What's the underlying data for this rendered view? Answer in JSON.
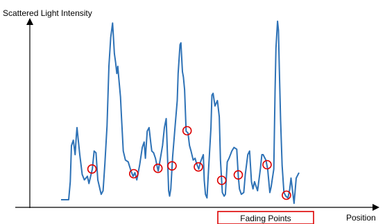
{
  "chart_data": {
    "type": "line",
    "title": "",
    "ylabel": "Scattered Light Intensity",
    "xlabel": "Position",
    "annotation": "Fading Points",
    "xlim": [
      0,
      100
    ],
    "ylim": [
      0,
      100
    ],
    "grid": false,
    "tick_labels": "none",
    "series": [
      {
        "values": [
          [
            0,
            0
          ],
          [
            2.5,
            0
          ],
          [
            3,
            10
          ],
          [
            3.4,
            30
          ],
          [
            4,
            33
          ],
          [
            4.6,
            25
          ],
          [
            5,
            36
          ],
          [
            5.2,
            40
          ],
          [
            6.1,
            25
          ],
          [
            6.9,
            14
          ],
          [
            7.6,
            11
          ],
          [
            8.6,
            13
          ],
          [
            9.1,
            9
          ],
          [
            10.2,
            17
          ],
          [
            10.8,
            27
          ],
          [
            11.4,
            26
          ],
          [
            12,
            11
          ],
          [
            12.8,
            5
          ],
          [
            13.1,
            3
          ],
          [
            13.7,
            5
          ],
          [
            14.3,
            20
          ],
          [
            15,
            41
          ],
          [
            15.6,
            74
          ],
          [
            16.2,
            90
          ],
          [
            16.8,
            98
          ],
          [
            17,
            93
          ],
          [
            17.4,
            81
          ],
          [
            17.8,
            76
          ],
          [
            18.2,
            70
          ],
          [
            18.5,
            74
          ],
          [
            18.8,
            68
          ],
          [
            19.4,
            57
          ],
          [
            19.7,
            46
          ],
          [
            20.3,
            27
          ],
          [
            21,
            22
          ],
          [
            21.9,
            21
          ],
          [
            22.8,
            16
          ],
          [
            23.5,
            13
          ],
          [
            24.1,
            15
          ],
          [
            24.7,
            11
          ],
          [
            25.6,
            19
          ],
          [
            26.5,
            29
          ],
          [
            27.1,
            32
          ],
          [
            27.5,
            23
          ],
          [
            28.1,
            38
          ],
          [
            28.7,
            40
          ],
          [
            29.3,
            31
          ],
          [
            29.6,
            27
          ],
          [
            30.2,
            26
          ],
          [
            30.8,
            23
          ],
          [
            31.4,
            18
          ],
          [
            31.7,
            16
          ],
          [
            32.3,
            22
          ],
          [
            33.1,
            30
          ],
          [
            33.7,
            40
          ],
          [
            34.3,
            45
          ],
          [
            34.7,
            25
          ],
          [
            35.1,
            5
          ],
          [
            35.4,
            2
          ],
          [
            35.8,
            6
          ],
          [
            36.4,
            24
          ],
          [
            37.3,
            43
          ],
          [
            37.9,
            55
          ],
          [
            38.2,
            70
          ],
          [
            38.8,
            86
          ],
          [
            39.1,
            87
          ],
          [
            39.6,
            71
          ],
          [
            39.9,
            68
          ],
          [
            40.3,
            61
          ],
          [
            40.8,
            38
          ],
          [
            41.4,
            37
          ],
          [
            41.9,
            30
          ],
          [
            42.4,
            27
          ],
          [
            43.1,
            22
          ],
          [
            43.7,
            23
          ],
          [
            44.2,
            20
          ],
          [
            44.9,
            17
          ],
          [
            45.5,
            21
          ],
          [
            46.4,
            25
          ],
          [
            46.7,
            11
          ],
          [
            47.1,
            3
          ],
          [
            47.6,
            1
          ],
          [
            48.2,
            19
          ],
          [
            48.9,
            40
          ],
          [
            49.2,
            58
          ],
          [
            49.6,
            59
          ],
          [
            50.2,
            52
          ],
          [
            51,
            55
          ],
          [
            51.6,
            46
          ],
          [
            52,
            22
          ],
          [
            52.6,
            4
          ],
          [
            53.2,
            2
          ],
          [
            53.6,
            3
          ],
          [
            54.2,
            21
          ],
          [
            54.8,
            23
          ],
          [
            55.7,
            27
          ],
          [
            56.4,
            29
          ],
          [
            57.3,
            28
          ],
          [
            57.8,
            13
          ],
          [
            58.2,
            6
          ],
          [
            58.8,
            3
          ],
          [
            59.6,
            4
          ],
          [
            60.1,
            14
          ],
          [
            60.9,
            25
          ],
          [
            61.5,
            27
          ],
          [
            62.1,
            10
          ],
          [
            62.6,
            6
          ],
          [
            63.1,
            10
          ],
          [
            64.1,
            5
          ],
          [
            65,
            17
          ],
          [
            65.5,
            25
          ],
          [
            65.9,
            25
          ],
          [
            66.8,
            22
          ],
          [
            67.4,
            17
          ],
          [
            67.6,
            13
          ],
          [
            68.1,
            4
          ],
          [
            68.5,
            7
          ],
          [
            69.4,
            17
          ],
          [
            69.8,
            60
          ],
          [
            70.1,
            84
          ],
          [
            70.6,
            99
          ],
          [
            70.9,
            94
          ],
          [
            71.2,
            72
          ],
          [
            71.6,
            44
          ],
          [
            72.1,
            19
          ],
          [
            72.7,
            4
          ],
          [
            73.3,
            2
          ],
          [
            74,
            1
          ],
          [
            74.6,
            6
          ],
          [
            75,
            12
          ],
          [
            76,
            -2
          ],
          [
            76.7,
            12
          ],
          [
            77.6,
            15
          ]
        ]
      }
    ],
    "fading_points_x": [
      10.1,
      23.7,
      31.6,
      36.2,
      41.1,
      44.8,
      52.4,
      57.8,
      67.2,
      73.5
    ]
  }
}
